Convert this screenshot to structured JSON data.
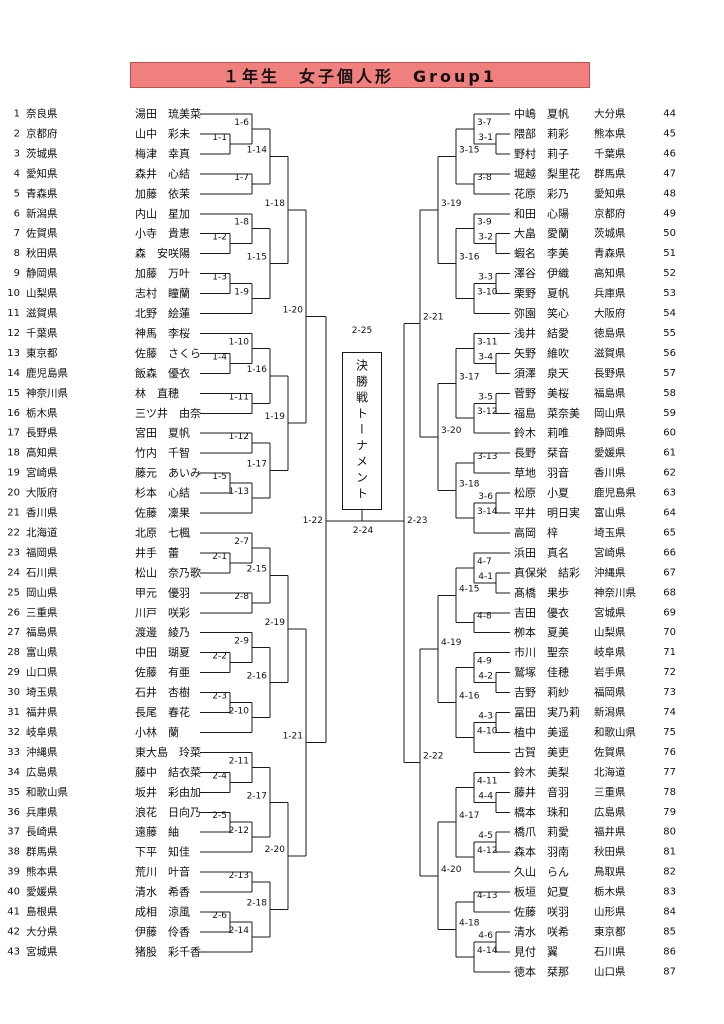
{
  "banner": {
    "text": "１年生　女子個人形　Group1",
    "bg": "#F0807E",
    "border": "#C0504D"
  },
  "finals": {
    "box_label": "決勝戦トーナメント",
    "final_label": "2-24",
    "winner_label": "2-25"
  },
  "left": {
    "participants": [
      {
        "n": 1,
        "pref": "奈良県",
        "name": "湯田　琉美菜"
      },
      {
        "n": 2,
        "pref": "京都府",
        "name": "山中　彩未"
      },
      {
        "n": 3,
        "pref": "茨城県",
        "name": "梅津　幸真"
      },
      {
        "n": 4,
        "pref": "愛知県",
        "name": "森井　心結"
      },
      {
        "n": 5,
        "pref": "青森県",
        "name": "加藤　依茉"
      },
      {
        "n": 6,
        "pref": "新潟県",
        "name": "内山　星加"
      },
      {
        "n": 7,
        "pref": "佐賀県",
        "name": "小寺　貴恵"
      },
      {
        "n": 8,
        "pref": "秋田県",
        "name": "森　安咲陽"
      },
      {
        "n": 9,
        "pref": "静岡県",
        "name": "加藤　万叶"
      },
      {
        "n": 10,
        "pref": "山梨県",
        "name": "志村　瞳蘭"
      },
      {
        "n": 11,
        "pref": "滋賀県",
        "name": "北野　絵蓮"
      },
      {
        "n": 12,
        "pref": "千葉県",
        "name": "神馬　李桜"
      },
      {
        "n": 13,
        "pref": "東京都",
        "name": "佐藤　さくら"
      },
      {
        "n": 14,
        "pref": "鹿児島県",
        "name": "飯森　優衣"
      },
      {
        "n": 15,
        "pref": "神奈川県",
        "name": "林　直穂"
      },
      {
        "n": 16,
        "pref": "栃木県",
        "name": "三ツ井　由奈"
      },
      {
        "n": 17,
        "pref": "長野県",
        "name": "宮田　夏帆"
      },
      {
        "n": 18,
        "pref": "高知県",
        "name": "竹内　千智"
      },
      {
        "n": 19,
        "pref": "宮崎県",
        "name": "藤元　あいみ"
      },
      {
        "n": 20,
        "pref": "大阪府",
        "name": "杉本　心結"
      },
      {
        "n": 21,
        "pref": "香川県",
        "name": "佐藤　凜果"
      },
      {
        "n": 22,
        "pref": "北海道",
        "name": "北原　七楓"
      },
      {
        "n": 23,
        "pref": "福岡県",
        "name": "井手　蕾"
      },
      {
        "n": 24,
        "pref": "石川県",
        "name": "松山　奈乃歌"
      },
      {
        "n": 25,
        "pref": "岡山県",
        "name": "甲元　優羽"
      },
      {
        "n": 26,
        "pref": "三重県",
        "name": "川戸　咲彩"
      },
      {
        "n": 27,
        "pref": "福島県",
        "name": "渡邊　綾乃"
      },
      {
        "n": 28,
        "pref": "富山県",
        "name": "中田　瑚夏"
      },
      {
        "n": 29,
        "pref": "山口県",
        "name": "佐藤　有亜"
      },
      {
        "n": 30,
        "pref": "埼玉県",
        "name": "石井　杏樹"
      },
      {
        "n": 31,
        "pref": "福井県",
        "name": "長尾　春花"
      },
      {
        "n": 32,
        "pref": "岐阜県",
        "name": "小林　蘭"
      },
      {
        "n": 33,
        "pref": "沖縄県",
        "name": "東大島　玲菜"
      },
      {
        "n": 34,
        "pref": "広島県",
        "name": "藤中　結衣菜"
      },
      {
        "n": 35,
        "pref": "和歌山県",
        "name": "坂井　彩由加"
      },
      {
        "n": 36,
        "pref": "兵庫県",
        "name": "浪花　日向乃"
      },
      {
        "n": 37,
        "pref": "長崎県",
        "name": "遠藤　紬"
      },
      {
        "n": 38,
        "pref": "群馬県",
        "name": "下平　知佳"
      },
      {
        "n": 39,
        "pref": "熊本県",
        "name": "荒川　叶音"
      },
      {
        "n": 40,
        "pref": "愛媛県",
        "name": "清水　希香"
      },
      {
        "n": 41,
        "pref": "島根県",
        "name": "成相　涼風"
      },
      {
        "n": 42,
        "pref": "大分県",
        "name": "伊藤　伶香"
      },
      {
        "n": 43,
        "pref": "宮城県",
        "name": "猪股　彩千香"
      }
    ],
    "matches": [
      {
        "id": "1-1",
        "round": 1,
        "a": "P2",
        "b": "P3"
      },
      {
        "id": "1-2",
        "round": 1,
        "a": "P7",
        "b": "P8"
      },
      {
        "id": "1-3",
        "round": 1,
        "a": "P9",
        "b": "P10"
      },
      {
        "id": "1-4",
        "round": 1,
        "a": "P13",
        "b": "P14"
      },
      {
        "id": "1-5",
        "round": 1,
        "a": "P19",
        "b": "P20"
      },
      {
        "id": "2-1",
        "round": 1,
        "a": "P23",
        "b": "P24"
      },
      {
        "id": "2-2",
        "round": 1,
        "a": "P28",
        "b": "P29"
      },
      {
        "id": "2-3",
        "round": 1,
        "a": "P30",
        "b": "P31"
      },
      {
        "id": "2-4",
        "round": 1,
        "a": "P34",
        "b": "P35"
      },
      {
        "id": "2-5",
        "round": 1,
        "a": "P36",
        "b": "P37"
      },
      {
        "id": "2-6",
        "round": 1,
        "a": "P41",
        "b": "P42"
      },
      {
        "id": "1-6",
        "round": 2,
        "a": "P1",
        "b": "1-1"
      },
      {
        "id": "1-7",
        "round": 2,
        "a": "P4",
        "b": "P5"
      },
      {
        "id": "1-8",
        "round": 2,
        "a": "P6",
        "b": "1-2"
      },
      {
        "id": "1-9",
        "round": 2,
        "a": "1-3",
        "b": "P11"
      },
      {
        "id": "1-10",
        "round": 2,
        "a": "P12",
        "b": "1-4"
      },
      {
        "id": "1-11",
        "round": 2,
        "a": "P15",
        "b": "P16"
      },
      {
        "id": "1-12",
        "round": 2,
        "a": "P17",
        "b": "P18"
      },
      {
        "id": "1-13",
        "round": 2,
        "a": "1-5",
        "b": "P21"
      },
      {
        "id": "2-7",
        "round": 2,
        "a": "P22",
        "b": "2-1"
      },
      {
        "id": "2-8",
        "round": 2,
        "a": "P25",
        "b": "P26"
      },
      {
        "id": "2-9",
        "round": 2,
        "a": "P27",
        "b": "2-2"
      },
      {
        "id": "2-10",
        "round": 2,
        "a": "2-3",
        "b": "P32"
      },
      {
        "id": "2-11",
        "round": 2,
        "a": "P33",
        "b": "2-4"
      },
      {
        "id": "2-12",
        "round": 2,
        "a": "2-5",
        "b": "P38"
      },
      {
        "id": "2-13",
        "round": 2,
        "a": "P39",
        "b": "P40"
      },
      {
        "id": "2-14",
        "round": 2,
        "a": "2-6",
        "b": "P43"
      },
      {
        "id": "1-14",
        "round": 3,
        "a": "1-6",
        "b": "1-7"
      },
      {
        "id": "1-15",
        "round": 3,
        "a": "1-8",
        "b": "1-9"
      },
      {
        "id": "1-16",
        "round": 3,
        "a": "1-10",
        "b": "1-11"
      },
      {
        "id": "1-17",
        "round": 3,
        "a": "1-12",
        "b": "1-13"
      },
      {
        "id": "2-15",
        "round": 3,
        "a": "2-7",
        "b": "2-8"
      },
      {
        "id": "2-16",
        "round": 3,
        "a": "2-9",
        "b": "2-10"
      },
      {
        "id": "2-17",
        "round": 3,
        "a": "2-11",
        "b": "2-12"
      },
      {
        "id": "2-18",
        "round": 3,
        "a": "2-13",
        "b": "2-14"
      },
      {
        "id": "1-18",
        "round": 4,
        "a": "1-14",
        "b": "1-15"
      },
      {
        "id": "1-19",
        "round": 4,
        "a": "1-16",
        "b": "1-17"
      },
      {
        "id": "2-19",
        "round": 4,
        "a": "2-15",
        "b": "2-16"
      },
      {
        "id": "2-20",
        "round": 4,
        "a": "2-17",
        "b": "2-18"
      },
      {
        "id": "1-20",
        "round": 5,
        "a": "1-18",
        "b": "1-19"
      },
      {
        "id": "1-21",
        "round": 5,
        "a": "2-19",
        "b": "2-20"
      },
      {
        "id": "1-22",
        "round": 6,
        "a": "1-20",
        "b": "1-21"
      }
    ]
  },
  "right": {
    "participants": [
      {
        "n": 44,
        "pref": "大分県",
        "name": "中嶋　夏帆"
      },
      {
        "n": 45,
        "pref": "熊本県",
        "name": "隈部　莉彩"
      },
      {
        "n": 46,
        "pref": "千葉県",
        "name": "野村　莉子"
      },
      {
        "n": 47,
        "pref": "群馬県",
        "name": "堀越　梨里花"
      },
      {
        "n": 48,
        "pref": "愛知県",
        "name": "花原　彩乃"
      },
      {
        "n": 49,
        "pref": "京都府",
        "name": "和田　心陽"
      },
      {
        "n": 50,
        "pref": "茨城県",
        "name": "大畠　愛蘭"
      },
      {
        "n": 51,
        "pref": "青森県",
        "name": "蝦名　李美"
      },
      {
        "n": 52,
        "pref": "高知県",
        "name": "澤谷　伊織"
      },
      {
        "n": 53,
        "pref": "兵庫県",
        "name": "栗野　夏帆"
      },
      {
        "n": 54,
        "pref": "大阪府",
        "name": "弥園　笑心"
      },
      {
        "n": 55,
        "pref": "徳島県",
        "name": "浅井　結愛"
      },
      {
        "n": 56,
        "pref": "滋賀県",
        "name": "矢野　維吹"
      },
      {
        "n": 57,
        "pref": "長野県",
        "name": "須澤　泉天"
      },
      {
        "n": 58,
        "pref": "福島県",
        "name": "菅野　美桜"
      },
      {
        "n": 59,
        "pref": "岡山県",
        "name": "福島　菜奈美"
      },
      {
        "n": 60,
        "pref": "静岡県",
        "name": "鈴木　莉唯"
      },
      {
        "n": 61,
        "pref": "愛媛県",
        "name": "長野　栞音"
      },
      {
        "n": 62,
        "pref": "香川県",
        "name": "草地　羽音"
      },
      {
        "n": 63,
        "pref": "鹿児島県",
        "name": "松原　小夏"
      },
      {
        "n": 64,
        "pref": "富山県",
        "name": "平井　明日実"
      },
      {
        "n": 65,
        "pref": "埼玉県",
        "name": "高岡　梓"
      },
      {
        "n": 66,
        "pref": "宮崎県",
        "name": "浜田　真名"
      },
      {
        "n": 67,
        "pref": "沖縄県",
        "name": "真保栄　結彩"
      },
      {
        "n": 68,
        "pref": "神奈川県",
        "name": "髙橋　果歩"
      },
      {
        "n": 69,
        "pref": "宮城県",
        "name": "吉田　優衣"
      },
      {
        "n": 70,
        "pref": "山梨県",
        "name": "栁本　夏美"
      },
      {
        "n": 71,
        "pref": "岐阜県",
        "name": "市川　聖奈"
      },
      {
        "n": 72,
        "pref": "岩手県",
        "name": "鷲塚　佳穂"
      },
      {
        "n": 73,
        "pref": "福岡県",
        "name": "吉野　莉紗"
      },
      {
        "n": 74,
        "pref": "新潟県",
        "name": "冨田　実乃莉"
      },
      {
        "n": 75,
        "pref": "和歌山県",
        "name": "植中　美遥"
      },
      {
        "n": 76,
        "pref": "佐賀県",
        "name": "古賀　美吏"
      },
      {
        "n": 77,
        "pref": "北海道",
        "name": "鈴木　美梨"
      },
      {
        "n": 78,
        "pref": "三重県",
        "name": "藤井　音羽"
      },
      {
        "n": 79,
        "pref": "広島県",
        "name": "橋本　珠和"
      },
      {
        "n": 80,
        "pref": "福井県",
        "name": "橋爪　莉愛"
      },
      {
        "n": 81,
        "pref": "秋田県",
        "name": "森本　羽南"
      },
      {
        "n": 82,
        "pref": "鳥取県",
        "name": "久山　らん"
      },
      {
        "n": 83,
        "pref": "栃木県",
        "name": "板垣　妃夏"
      },
      {
        "n": 84,
        "pref": "山形県",
        "name": "佐藤　咲羽"
      },
      {
        "n": 85,
        "pref": "東京都",
        "name": "清水　咲希"
      },
      {
        "n": 86,
        "pref": "石川県",
        "name": "見付　翼"
      },
      {
        "n": 87,
        "pref": "山口県",
        "name": "徳本　栞那"
      }
    ],
    "matches": [
      {
        "id": "3-1",
        "round": 1,
        "a": "P45",
        "b": "P46"
      },
      {
        "id": "3-2",
        "round": 1,
        "a": "P50",
        "b": "P51"
      },
      {
        "id": "3-3",
        "round": 1,
        "a": "P52",
        "b": "P53"
      },
      {
        "id": "3-4",
        "round": 1,
        "a": "P56",
        "b": "P57"
      },
      {
        "id": "3-5",
        "round": 1,
        "a": "P58",
        "b": "P59"
      },
      {
        "id": "3-6",
        "round": 1,
        "a": "P63",
        "b": "P64"
      },
      {
        "id": "4-1",
        "round": 1,
        "a": "P67",
        "b": "P68"
      },
      {
        "id": "4-2",
        "round": 1,
        "a": "P72",
        "b": "P73"
      },
      {
        "id": "4-3",
        "round": 1,
        "a": "P74",
        "b": "P75"
      },
      {
        "id": "4-4",
        "round": 1,
        "a": "P78",
        "b": "P79"
      },
      {
        "id": "4-5",
        "round": 1,
        "a": "P80",
        "b": "P81"
      },
      {
        "id": "4-6",
        "round": 1,
        "a": "P85",
        "b": "P86"
      },
      {
        "id": "3-7",
        "round": 2,
        "a": "P44",
        "b": "3-1"
      },
      {
        "id": "3-8",
        "round": 2,
        "a": "P47",
        "b": "P48"
      },
      {
        "id": "3-9",
        "round": 2,
        "a": "P49",
        "b": "3-2"
      },
      {
        "id": "3-10",
        "round": 2,
        "a": "3-3",
        "b": "P54"
      },
      {
        "id": "3-11",
        "round": 2,
        "a": "P55",
        "b": "3-4"
      },
      {
        "id": "3-12",
        "round": 2,
        "a": "3-5",
        "b": "P60"
      },
      {
        "id": "3-13",
        "round": 2,
        "a": "P61",
        "b": "P62"
      },
      {
        "id": "3-14",
        "round": 2,
        "a": "3-6",
        "b": "P65"
      },
      {
        "id": "4-7",
        "round": 2,
        "a": "P66",
        "b": "4-1"
      },
      {
        "id": "4-8",
        "round": 2,
        "a": "P69",
        "b": "P70"
      },
      {
        "id": "4-9",
        "round": 2,
        "a": "P71",
        "b": "4-2"
      },
      {
        "id": "4-10",
        "round": 2,
        "a": "4-3",
        "b": "P76"
      },
      {
        "id": "4-11",
        "round": 2,
        "a": "P77",
        "b": "4-4"
      },
      {
        "id": "4-12",
        "round": 2,
        "a": "4-5",
        "b": "P82"
      },
      {
        "id": "4-13",
        "round": 2,
        "a": "P83",
        "b": "P84"
      },
      {
        "id": "4-14",
        "round": 2,
        "a": "4-6",
        "b": "P87"
      },
      {
        "id": "3-15",
        "round": 3,
        "a": "3-7",
        "b": "3-8"
      },
      {
        "id": "3-16",
        "round": 3,
        "a": "3-9",
        "b": "3-10"
      },
      {
        "id": "3-17",
        "round": 3,
        "a": "3-11",
        "b": "3-12"
      },
      {
        "id": "3-18",
        "round": 3,
        "a": "3-13",
        "b": "3-14"
      },
      {
        "id": "4-15",
        "round": 3,
        "a": "4-7",
        "b": "4-8"
      },
      {
        "id": "4-16",
        "round": 3,
        "a": "4-9",
        "b": "4-10"
      },
      {
        "id": "4-17",
        "round": 3,
        "a": "4-11",
        "b": "4-12"
      },
      {
        "id": "4-18",
        "round": 3,
        "a": "4-13",
        "b": "4-14"
      },
      {
        "id": "3-19",
        "round": 4,
        "a": "3-15",
        "b": "3-16"
      },
      {
        "id": "3-20",
        "round": 4,
        "a": "3-17",
        "b": "3-18"
      },
      {
        "id": "4-19",
        "round": 4,
        "a": "4-15",
        "b": "4-16"
      },
      {
        "id": "4-20",
        "round": 4,
        "a": "4-17",
        "b": "4-18"
      },
      {
        "id": "2-21",
        "round": 5,
        "a": "3-19",
        "b": "3-20"
      },
      {
        "id": "2-22",
        "round": 5,
        "a": "4-19",
        "b": "4-20"
      },
      {
        "id": "2-23",
        "round": 6,
        "a": "2-21",
        "b": "2-22"
      }
    ]
  }
}
